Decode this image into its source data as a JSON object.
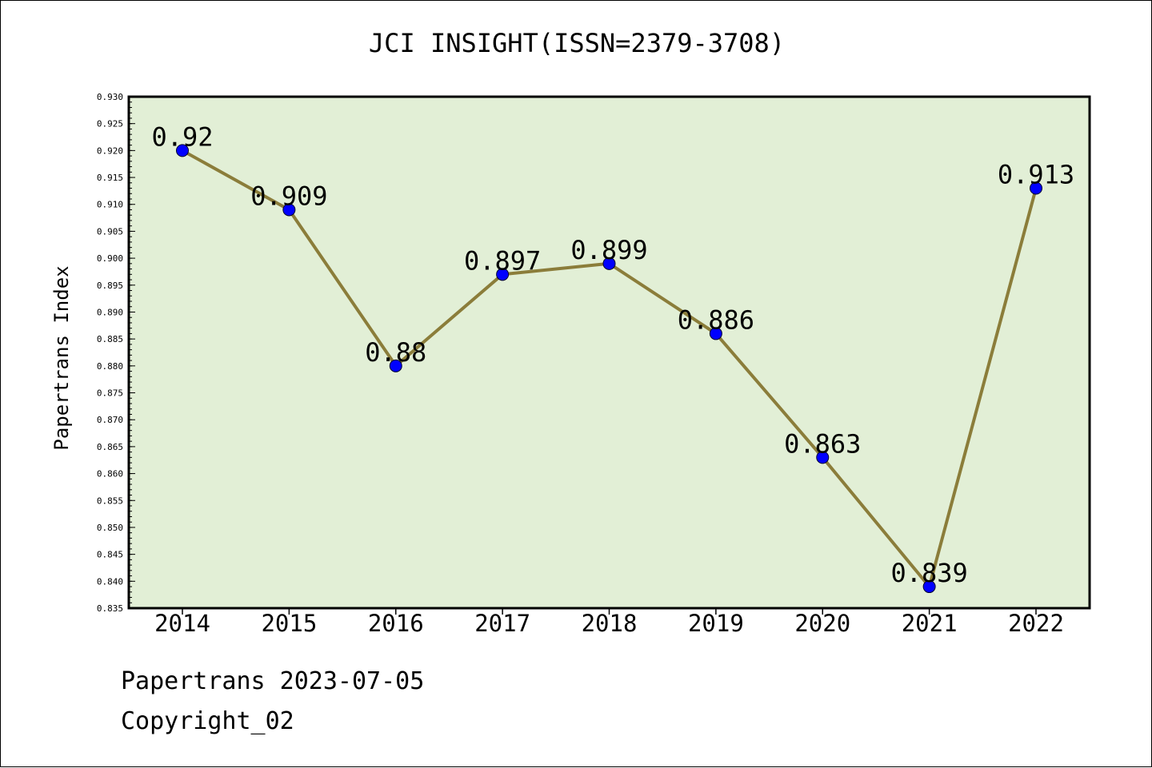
{
  "chart_data": {
    "type": "line",
    "title": "JCI INSIGHT(ISSN=2379-3708)",
    "xlabel": "",
    "ylabel": "Papertrans Index",
    "categories": [
      "2014",
      "2015",
      "2016",
      "2017",
      "2018",
      "2019",
      "2020",
      "2021",
      "2022"
    ],
    "values": [
      0.92,
      0.909,
      0.88,
      0.897,
      0.899,
      0.886,
      0.863,
      0.839,
      0.913
    ],
    "data_labels": [
      "0.92",
      "0.909",
      "0.88",
      "0.897",
      "0.899",
      "0.886",
      "0.863",
      "0.839",
      "0.913"
    ],
    "ylim": [
      0.835,
      0.93
    ],
    "yticks": [
      "0.835",
      "0.840",
      "0.845",
      "0.850",
      "0.855",
      "0.860",
      "0.865",
      "0.870",
      "0.875",
      "0.880",
      "0.885",
      "0.890",
      "0.895",
      "0.900",
      "0.905",
      "0.910",
      "0.915",
      "0.920",
      "0.925",
      "0.930"
    ],
    "grid": false,
    "colors": {
      "plot_background": "#e2efd6",
      "line": "#8b7d3a",
      "marker": "#0000ff"
    }
  },
  "footer": {
    "line1": "Papertrans 2023-07-05",
    "line2": "Copyright_02"
  }
}
